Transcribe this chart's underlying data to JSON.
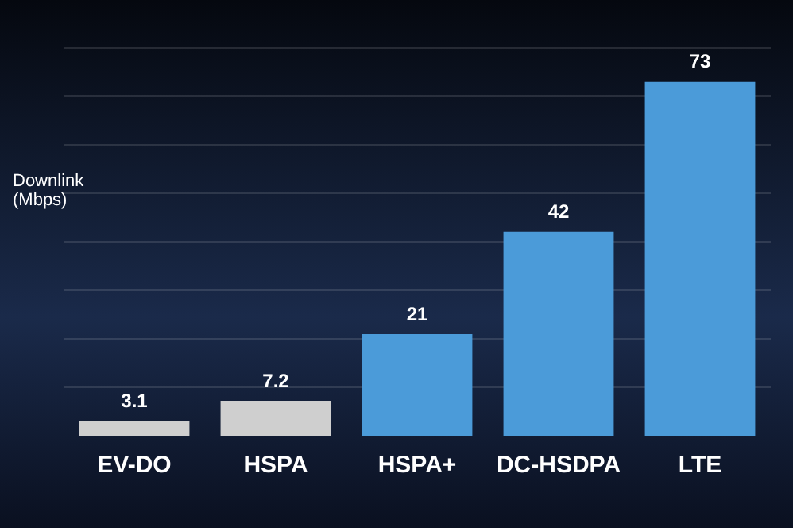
{
  "chart_data": {
    "type": "bar",
    "ylabel": "Downlink (Mbps)",
    "categories": [
      "EV-DO",
      "HSPA",
      "HSPA+",
      "DC-HSDPA",
      "LTE"
    ],
    "values": [
      3.1,
      7.2,
      21,
      42,
      73
    ],
    "colors": [
      "#cfcfcf",
      "#cfcfcf",
      "#4b9bd9",
      "#4b9bd9",
      "#4b9bd9"
    ],
    "ylim": [
      0,
      80
    ],
    "yticks": [
      {
        "value": 10,
        "label": null
      },
      {
        "value": 20,
        "label": null
      },
      {
        "value": 30,
        "label": null
      },
      {
        "value": 40,
        "label": null
      },
      {
        "value": 50,
        "label": null
      },
      {
        "value": 60,
        "label": null
      },
      {
        "value": 70,
        "label": null
      },
      {
        "value": 80,
        "label": null
      }
    ],
    "grid": "y",
    "data_labels": true,
    "tick_labels": "x"
  }
}
